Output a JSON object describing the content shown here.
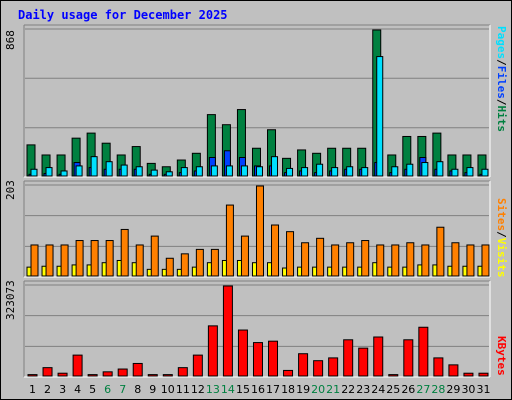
{
  "title": "Daily usage for December 2025",
  "colors": {
    "hits": "#008040",
    "files": "#0040ff",
    "pages": "#00e0ff",
    "visits": "#ffff00",
    "sites": "#ff8000",
    "kbytes": "#ff0000",
    "weekend": "#008040",
    "weekday": "#000000",
    "panel": "#c0c0c0",
    "grid": "#808080"
  },
  "labels": {
    "top_right": {
      "pages": "Pages",
      "files": "Files",
      "hits": "Hits",
      "sep": "/"
    },
    "mid_right": {
      "sites": "Sites",
      "visits": "Visits",
      "sep": "/"
    },
    "bot_right": {
      "kbytes": "KBytes"
    },
    "top_max": "868",
    "mid_max": "203",
    "bot_max": "323073"
  },
  "chart_data": [
    {
      "type": "bar",
      "name": "hits-files-pages",
      "ylim": [
        0,
        868
      ],
      "categories": [
        "1",
        "2",
        "3",
        "4",
        "5",
        "6",
        "7",
        "8",
        "9",
        "10",
        "11",
        "12",
        "13",
        "14",
        "15",
        "16",
        "17",
        "18",
        "19",
        "20",
        "21",
        "22",
        "23",
        "24",
        "25",
        "26",
        "27",
        "28",
        "29",
        "30",
        "31"
      ],
      "series": [
        {
          "name": "Hits",
          "values": [
            185,
            125,
            125,
            225,
            255,
            195,
            125,
            175,
            75,
            55,
            95,
            135,
            365,
            305,
            395,
            165,
            275,
            105,
            155,
            135,
            165,
            165,
            165,
            868,
            125,
            235,
            235,
            255,
            125,
            125,
            125
          ]
        },
        {
          "name": "Files",
          "values": [
            10,
            15,
            10,
            80,
            50,
            40,
            40,
            40,
            10,
            10,
            20,
            30,
            110,
            150,
            110,
            60,
            60,
            20,
            30,
            20,
            30,
            40,
            40,
            80,
            20,
            40,
            110,
            40,
            30,
            20,
            10
          ]
        },
        {
          "name": "Pages",
          "values": [
            40,
            50,
            30,
            60,
            115,
            85,
            65,
            55,
            35,
            25,
            50,
            55,
            60,
            60,
            60,
            55,
            115,
            45,
            50,
            70,
            50,
            55,
            50,
            710,
            55,
            70,
            80,
            85,
            40,
            50,
            40
          ]
        }
      ]
    },
    {
      "type": "bar",
      "name": "sites-visits",
      "ylim": [
        0,
        203
      ],
      "categories": [
        "1",
        "2",
        "3",
        "4",
        "5",
        "6",
        "7",
        "8",
        "9",
        "10",
        "11",
        "12",
        "13",
        "14",
        "15",
        "16",
        "17",
        "18",
        "19",
        "20",
        "21",
        "22",
        "23",
        "24",
        "25",
        "26",
        "27",
        "28",
        "29",
        "30",
        "31"
      ],
      "series": [
        {
          "name": "Visits",
          "values": [
            20,
            22,
            22,
            25,
            25,
            30,
            35,
            30,
            15,
            15,
            15,
            20,
            30,
            35,
            35,
            30,
            30,
            18,
            20,
            20,
            20,
            20,
            20,
            30,
            20,
            20,
            25,
            25,
            22,
            22,
            22
          ]
        },
        {
          "name": "Sites",
          "values": [
            70,
            70,
            70,
            80,
            80,
            80,
            105,
            70,
            90,
            40,
            50,
            60,
            60,
            160,
            90,
            203,
            115,
            100,
            75,
            85,
            70,
            75,
            80,
            70,
            70,
            75,
            70,
            110,
            75,
            70,
            70
          ]
        }
      ]
    },
    {
      "type": "bar",
      "name": "kbytes",
      "ylim": [
        0,
        323073
      ],
      "categories": [
        "1",
        "2",
        "3",
        "4",
        "5",
        "6",
        "7",
        "8",
        "9",
        "10",
        "11",
        "12",
        "13",
        "14",
        "15",
        "16",
        "17",
        "18",
        "19",
        "20",
        "21",
        "22",
        "23",
        "24",
        "25",
        "26",
        "27",
        "28",
        "29",
        "30",
        "31"
      ],
      "series": [
        {
          "name": "KBytes",
          "values": [
            5000,
            30000,
            10000,
            75000,
            5000,
            15000,
            25000,
            45000,
            5000,
            5000,
            30000,
            75000,
            180000,
            323073,
            165000,
            120000,
            125000,
            20000,
            80000,
            55000,
            65000,
            130000,
            100000,
            140000,
            5000,
            130000,
            175000,
            65000,
            40000,
            10000,
            10000
          ]
        }
      ]
    }
  ],
  "day_labels": [
    "1",
    "2",
    "3",
    "4",
    "5",
    "6",
    "7",
    "8",
    "9",
    "10",
    "11",
    "12",
    "13",
    "14",
    "15",
    "16",
    "17",
    "18",
    "19",
    "20",
    "21",
    "22",
    "23",
    "24",
    "25",
    "26",
    "27",
    "28",
    "29",
    "30",
    "31"
  ],
  "weekend_days": [
    "6",
    "7",
    "13",
    "14",
    "20",
    "21",
    "27",
    "28"
  ]
}
